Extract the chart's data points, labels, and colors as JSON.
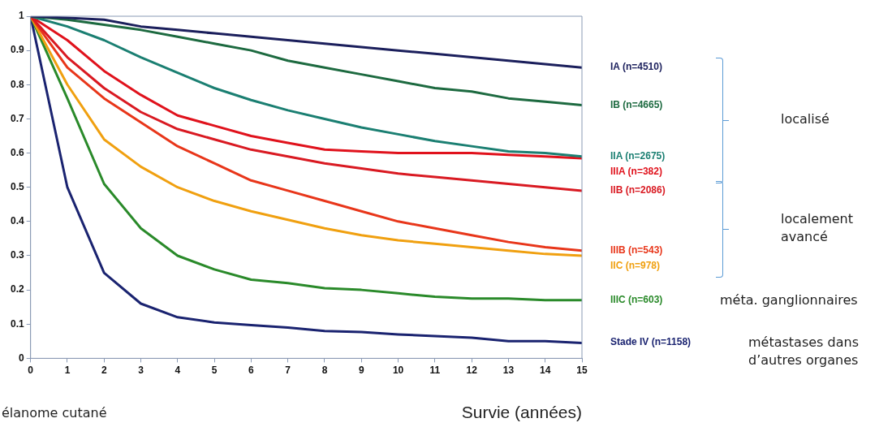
{
  "chart_data": {
    "type": "line",
    "xlabel": "Survie (années)",
    "x": [
      0,
      1,
      2,
      3,
      4,
      5,
      6,
      7,
      8,
      9,
      10,
      11,
      12,
      13,
      14,
      15
    ],
    "xlim": [
      0,
      15
    ],
    "xticks": [
      0,
      1,
      2,
      3,
      4,
      5,
      6,
      7,
      8,
      9,
      10,
      11,
      12,
      13,
      14,
      15
    ],
    "ylim": [
      0,
      1
    ],
    "yticks": [
      0,
      0.1,
      0.2,
      0.3,
      0.4,
      0.5,
      0.6,
      0.7,
      0.8,
      0.9,
      1
    ],
    "grid": false,
    "legend": "right",
    "marker": "none",
    "line_style": "solid",
    "series": [
      {
        "name": "IA (n=4510)",
        "color": "#1b1f5c",
        "values": [
          1,
          0.995,
          0.99,
          0.97,
          0.96,
          0.95,
          0.94,
          0.93,
          0.92,
          0.91,
          0.9,
          0.89,
          0.88,
          0.87,
          0.86,
          0.85
        ]
      },
      {
        "name": "IB (n=4665)",
        "color": "#1d6a40",
        "values": [
          1,
          0.99,
          0.975,
          0.96,
          0.94,
          0.92,
          0.9,
          0.87,
          0.85,
          0.83,
          0.81,
          0.79,
          0.78,
          0.76,
          0.75,
          0.74
        ]
      },
      {
        "name": "IIA (n=2675)",
        "color": "#1b7f72",
        "values": [
          1,
          0.97,
          0.93,
          0.88,
          0.835,
          0.79,
          0.755,
          0.725,
          0.7,
          0.675,
          0.655,
          0.635,
          0.62,
          0.605,
          0.6,
          0.59
        ]
      },
      {
        "name": "IIIA (n=382)",
        "color": "#e0121c",
        "values": [
          1,
          0.93,
          0.84,
          0.77,
          0.71,
          0.68,
          0.65,
          0.63,
          0.61,
          0.605,
          0.6,
          0.6,
          0.6,
          0.595,
          0.59,
          0.585
        ]
      },
      {
        "name": "IIB (n=2086)",
        "color": "#d91a22",
        "values": [
          1,
          0.88,
          0.79,
          0.72,
          0.67,
          0.64,
          0.61,
          0.59,
          0.57,
          0.555,
          0.54,
          0.53,
          0.52,
          0.51,
          0.5,
          0.49
        ]
      },
      {
        "name": "IIIB (n=543)",
        "color": "#e8361a",
        "values": [
          1,
          0.85,
          0.76,
          0.69,
          0.62,
          0.57,
          0.52,
          0.49,
          0.46,
          0.43,
          0.4,
          0.38,
          0.36,
          0.34,
          0.325,
          0.315
        ]
      },
      {
        "name": "IIC (n=978)",
        "color": "#f0a010",
        "values": [
          1,
          0.8,
          0.64,
          0.56,
          0.5,
          0.46,
          0.43,
          0.405,
          0.38,
          0.36,
          0.345,
          0.335,
          0.325,
          0.315,
          0.305,
          0.3
        ]
      },
      {
        "name": "IIIC (n=603)",
        "color": "#2a8a2a",
        "values": [
          1,
          0.76,
          0.51,
          0.38,
          0.3,
          0.26,
          0.23,
          0.22,
          0.205,
          0.2,
          0.19,
          0.18,
          0.175,
          0.175,
          0.17,
          0.17
        ]
      },
      {
        "name": "Stade IV (n=1158)",
        "color": "#1a2370",
        "values": [
          1,
          0.5,
          0.25,
          0.16,
          0.12,
          0.105,
          0.097,
          0.09,
          0.08,
          0.077,
          0.07,
          0.065,
          0.06,
          0.05,
          0.05,
          0.045
        ]
      }
    ],
    "annotations": [
      "localisé",
      "localement avancé",
      "méta. ganglionnaires",
      "métastases dans d’autres organes",
      "élanome cutané"
    ]
  }
}
